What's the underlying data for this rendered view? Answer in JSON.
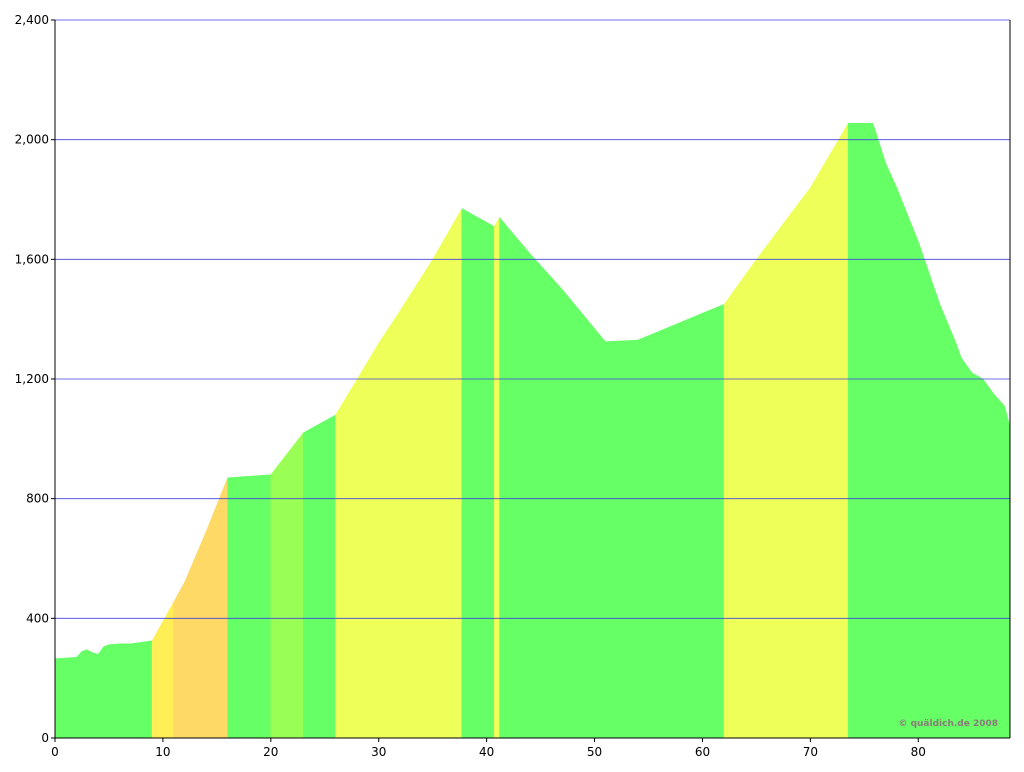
{
  "chart_data": {
    "type": "area",
    "credit": "© quäldich.de 2008",
    "xlim": [
      0,
      88.5
    ],
    "ylim": [
      0,
      2400
    ],
    "xticks": [
      0,
      10,
      20,
      30,
      40,
      50,
      60,
      70,
      80
    ],
    "yticks": [
      0,
      {
        "value": 400,
        "label": "400"
      },
      {
        "value": 800,
        "label": "800"
      },
      {
        "value": 1200,
        "label": "1,200"
      },
      {
        "value": 1600,
        "label": "1,600"
      },
      {
        "value": 2000,
        "label": "2,000"
      },
      {
        "value": 2400,
        "label": "2,400"
      }
    ],
    "grid": true,
    "grid_color": "#4040e0",
    "segments": [
      {
        "color": "#66ff66",
        "x": [
          0,
          2,
          2.5,
          3,
          3.5,
          4,
          4.5,
          5,
          6,
          7,
          8,
          9
        ],
        "values": [
          265,
          270,
          290,
          295,
          285,
          280,
          305,
          312,
          315,
          315,
          320,
          325
        ]
      },
      {
        "color": "#ffee55",
        "x": [
          9,
          10,
          11
        ],
        "values": [
          325,
          390,
          455
        ]
      },
      {
        "color": "#ffd966",
        "x": [
          11,
          12,
          14,
          16
        ],
        "values": [
          455,
          520,
          690,
          870
        ]
      },
      {
        "color": "#66ff66",
        "x": [
          16,
          18,
          20
        ],
        "values": [
          870,
          875,
          880
        ]
      },
      {
        "color": "#99ff55",
        "x": [
          20,
          23
        ],
        "values": [
          880,
          1020
        ]
      },
      {
        "color": "#66ff66",
        "x": [
          23,
          26
        ],
        "values": [
          1020,
          1080
        ]
      },
      {
        "color": "#eeff5a",
        "x": [
          26,
          28,
          30,
          32,
          35,
          37.7
        ],
        "values": [
          1080,
          1200,
          1320,
          1430,
          1600,
          1770
        ]
      },
      {
        "color": "#66ff66",
        "x": [
          37.7,
          40.7
        ],
        "values": [
          1770,
          1710
        ]
      },
      {
        "color": "#eeff5a",
        "x": [
          40.7,
          41.2
        ],
        "values": [
          1710,
          1740
        ]
      },
      {
        "color": "#66ff66",
        "x": [
          41.2,
          44,
          47,
          51,
          54,
          58,
          60,
          62
        ],
        "values": [
          1740,
          1620,
          1500,
          1325,
          1330,
          1390,
          1420,
          1450
        ]
      },
      {
        "color": "#eeff5a",
        "x": [
          62,
          65,
          70,
          73.5
        ],
        "values": [
          1450,
          1600,
          1840,
          2055
        ]
      },
      {
        "color": "#66ff66",
        "x": [
          73.5,
          75.8,
          77,
          78,
          80,
          82,
          83.5,
          84,
          85,
          86,
          87,
          88,
          88.5
        ],
        "values": [
          2055,
          2055,
          1920,
          1840,
          1660,
          1450,
          1320,
          1270,
          1220,
          1200,
          1150,
          1110,
          1040
        ]
      }
    ]
  }
}
